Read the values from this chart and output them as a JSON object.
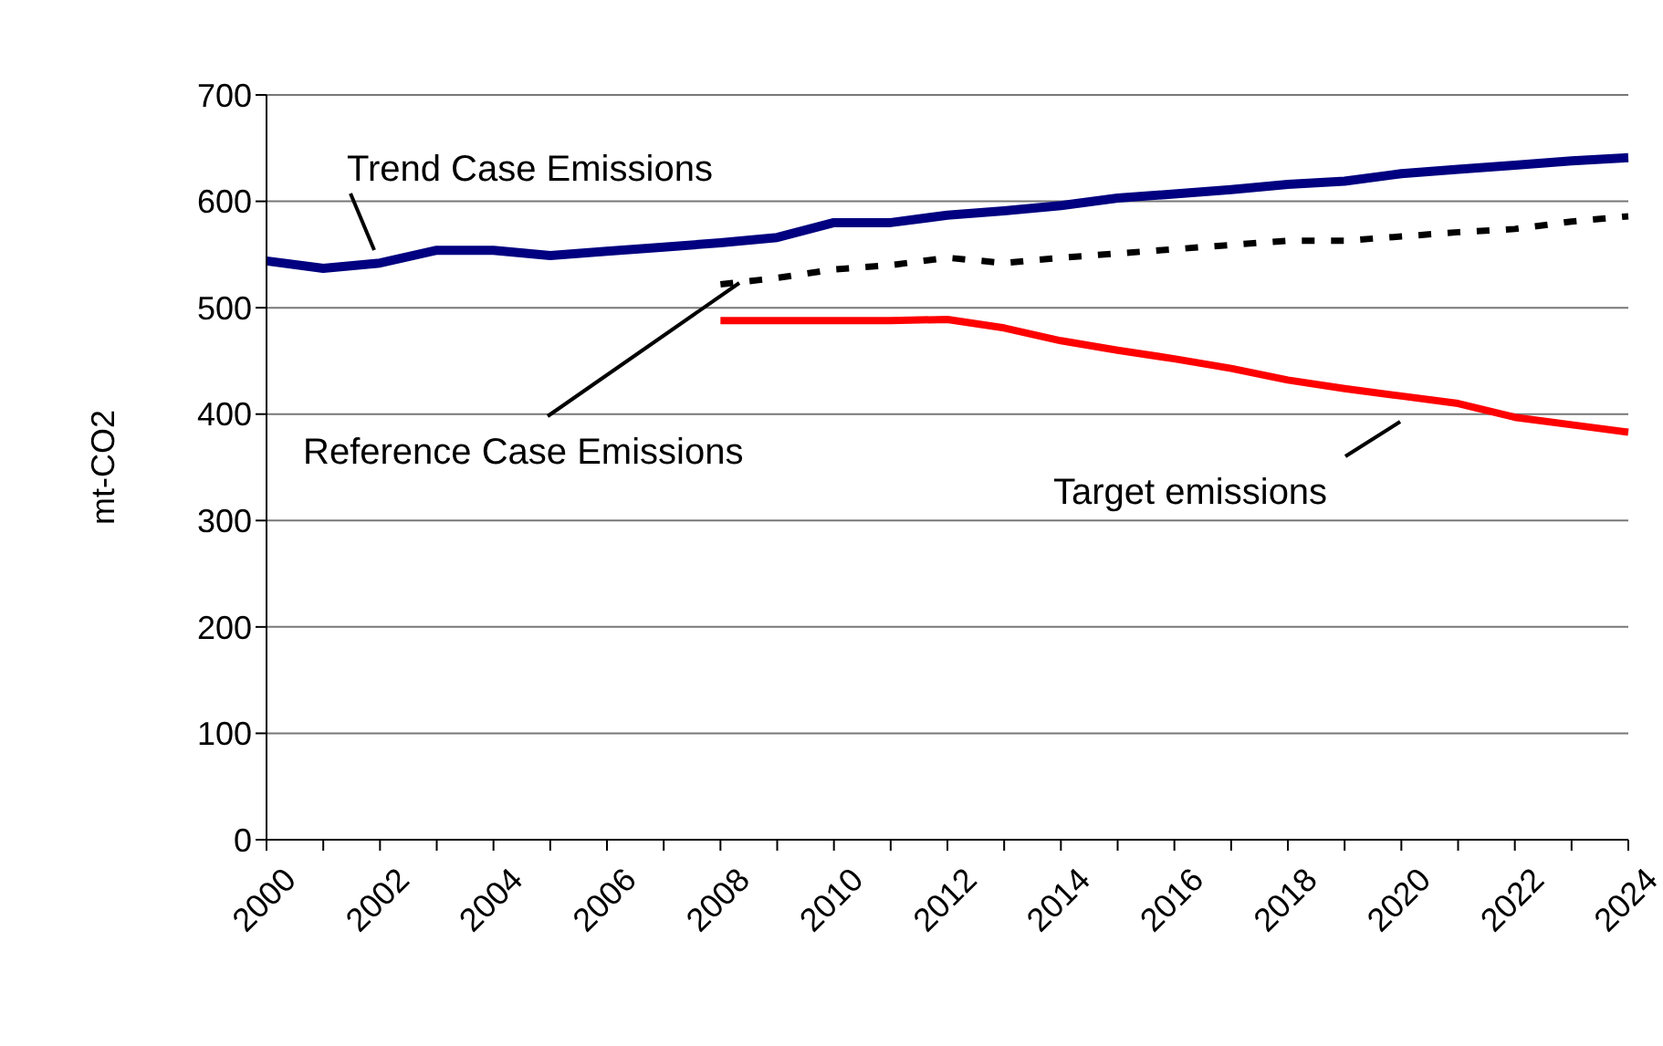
{
  "chart_data": {
    "type": "line",
    "categories": [
      "2000",
      null,
      "2002",
      null,
      "2004",
      null,
      "2006",
      null,
      "2008",
      null,
      "2010",
      null,
      "2012",
      null,
      "2014",
      null,
      "2016",
      null,
      "2018",
      null,
      "2020",
      null,
      "2022",
      null,
      "2024"
    ],
    "ylabel": "mt-CO2",
    "ylim": [
      0,
      700
    ],
    "yticks": [
      0,
      100,
      200,
      300,
      400,
      500,
      600,
      700
    ],
    "grid": "y",
    "legend": false,
    "series": [
      {
        "name": "Trend Case Emissions",
        "color": "#000080",
        "line_style": "solid",
        "values": [
          544,
          537,
          542,
          554,
          554,
          549,
          553,
          557,
          561,
          566,
          580,
          580,
          587,
          591,
          596,
          603,
          607,
          611,
          616,
          619,
          626,
          630,
          634,
          638,
          641
        ]
      },
      {
        "name": "Reference Case Emissions",
        "color": "#000000",
        "line_style": "dashed",
        "values": [
          null,
          null,
          null,
          null,
          null,
          null,
          null,
          null,
          522,
          528,
          536,
          540,
          547,
          542,
          547,
          551,
          555,
          559,
          563,
          563,
          567,
          571,
          574,
          581,
          586
        ]
      },
      {
        "name": "Target emissions",
        "color": "#ff0000",
        "line_style": "solid",
        "values": [
          null,
          null,
          null,
          null,
          null,
          null,
          null,
          null,
          488,
          488,
          488,
          488,
          489,
          481,
          469,
          460,
          452,
          443,
          432,
          424,
          417,
          410,
          397,
          390,
          383
        ]
      }
    ]
  }
}
